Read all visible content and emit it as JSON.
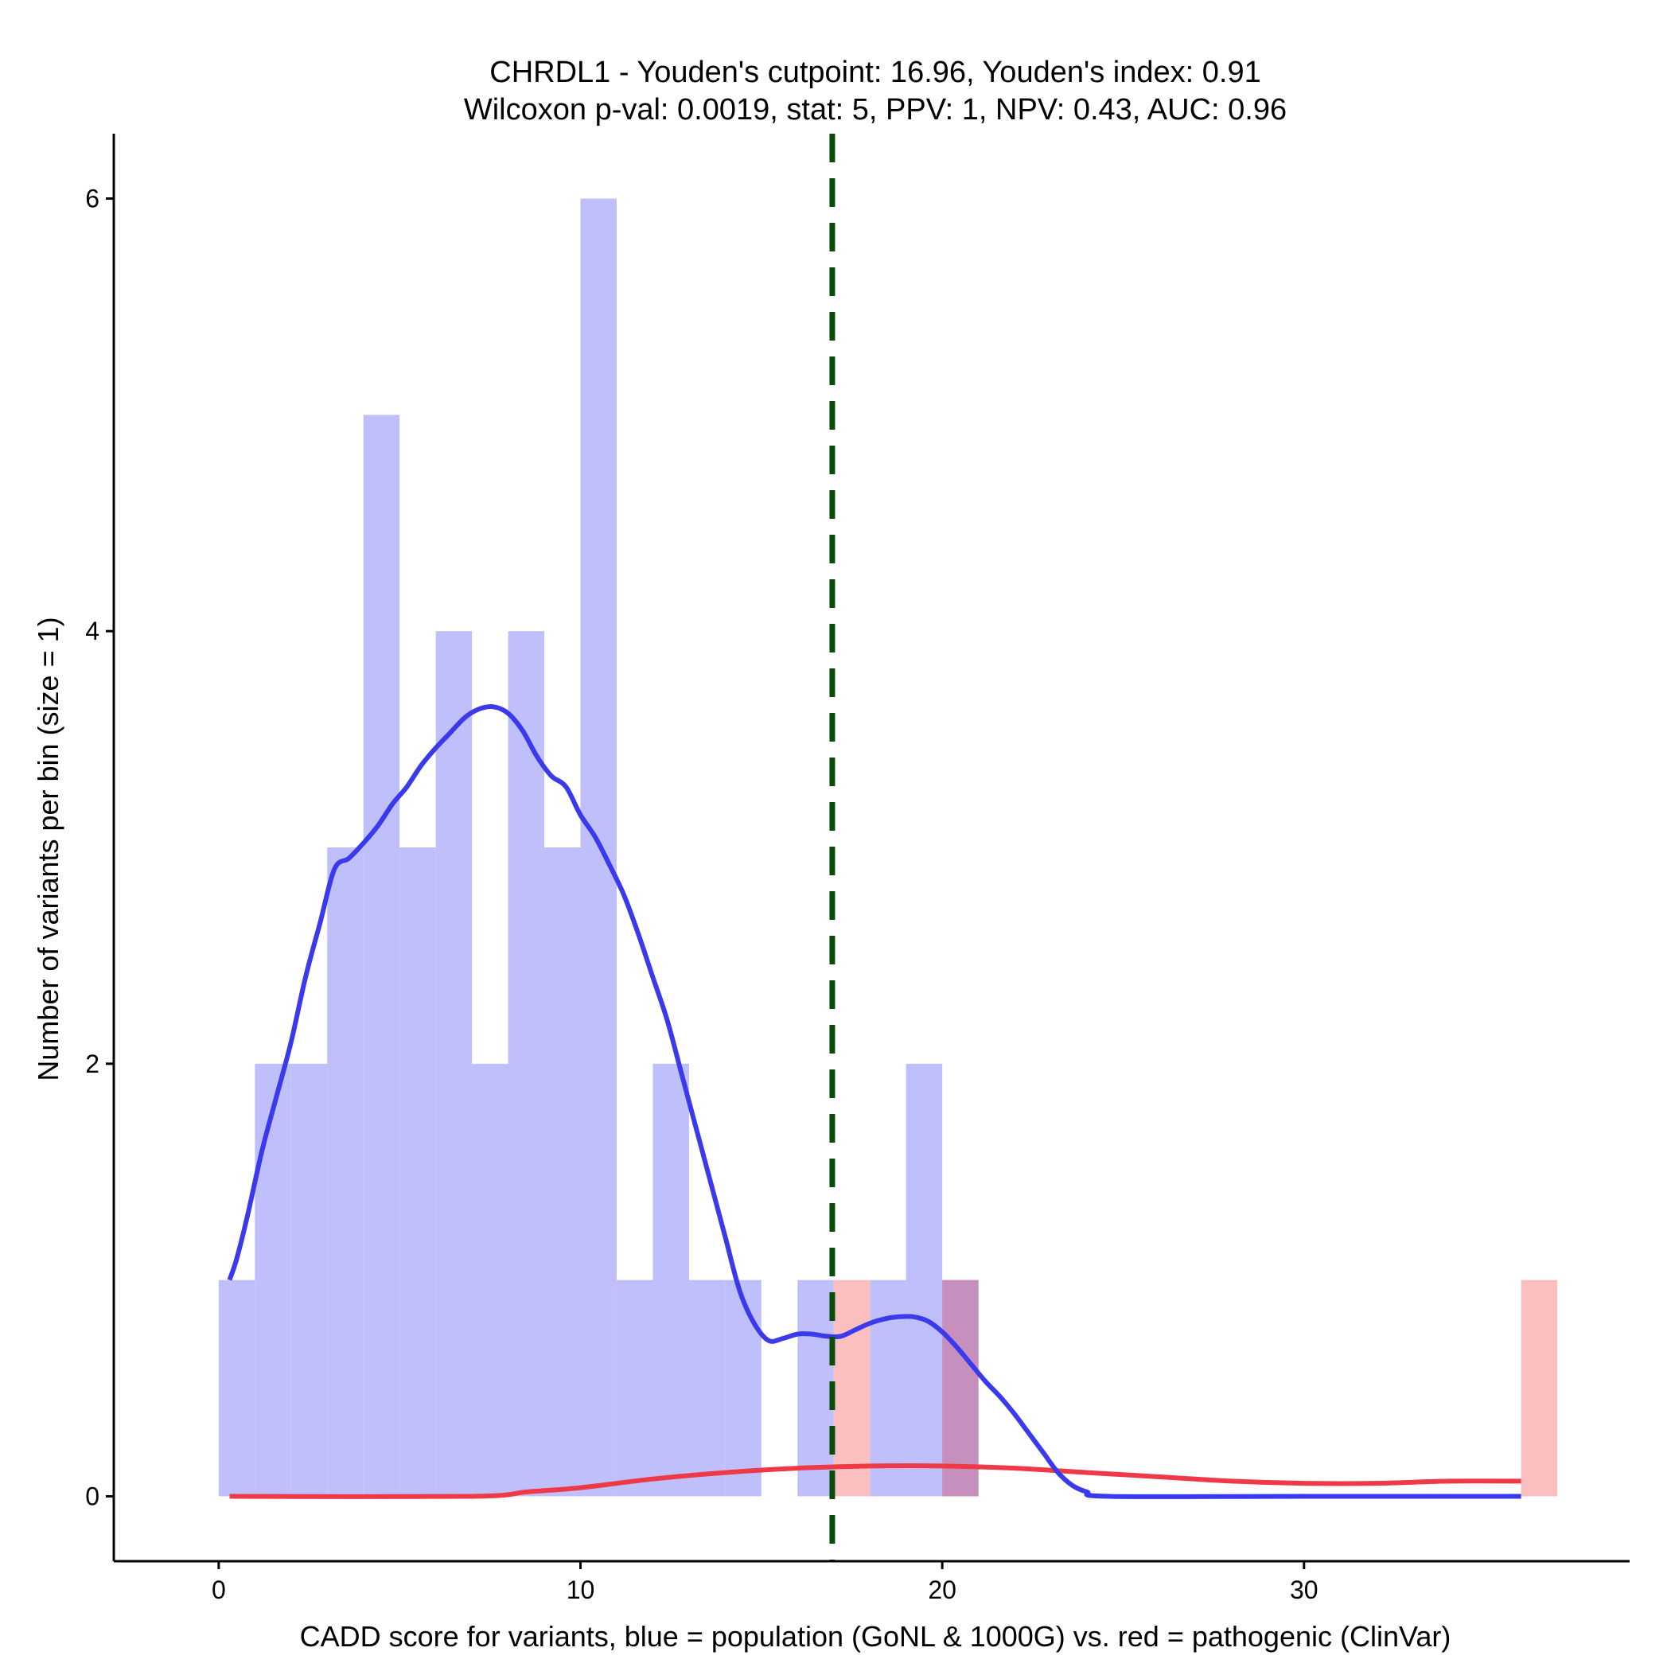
{
  "chart_data": {
    "type": "bar",
    "title": "CHRDL1 - Youden's cutpoint: 16.96, Youden's index: 0.91",
    "subtitle": "Wilcoxon p-val: 0.0019, stat: 5, PPV: 1, NPV: 0.43, AUC: 0.96",
    "xlabel": "CADD score for variants, blue = population (GoNL & 1000G) vs. red = pathogenic (ClinVar)",
    "ylabel": "Number of variants per bin (size = 1)",
    "xlim": [
      -2.9,
      39
    ],
    "ylim": [
      -0.3,
      6.3
    ],
    "x_ticks": [
      0,
      10,
      20,
      30
    ],
    "y_ticks": [
      0,
      2,
      4,
      6
    ],
    "grid": false,
    "bin_width": 1,
    "cutpoint": 16.96,
    "colors": {
      "population_fill": "#bfbffb",
      "pathogenic_fill": "#fcbfbf",
      "overlap_fill": "#c78fbd",
      "population_density": "#3a3aec",
      "pathogenic_density": "#ee3a46",
      "cutpoint_line": "#0a4d0a"
    },
    "series": [
      {
        "role": "population",
        "bins": [
          {
            "x": 0,
            "count": 1
          },
          {
            "x": 1,
            "count": 2
          },
          {
            "x": 2,
            "count": 2
          },
          {
            "x": 3,
            "count": 3
          },
          {
            "x": 4,
            "count": 5
          },
          {
            "x": 5,
            "count": 3
          },
          {
            "x": 6,
            "count": 4
          },
          {
            "x": 7,
            "count": 2
          },
          {
            "x": 8,
            "count": 4
          },
          {
            "x": 9,
            "count": 3
          },
          {
            "x": 10,
            "count": 6
          },
          {
            "x": 11,
            "count": 1
          },
          {
            "x": 12,
            "count": 2
          },
          {
            "x": 13,
            "count": 1
          },
          {
            "x": 14,
            "count": 1
          },
          {
            "x": 16,
            "count": 1
          },
          {
            "x": 18,
            "count": 1
          },
          {
            "x": 19,
            "count": 2
          },
          {
            "x": 20,
            "count": 1
          }
        ]
      },
      {
        "role": "pathogenic",
        "bins": [
          {
            "x": 17,
            "count": 1
          },
          {
            "x": 20,
            "count": 1
          },
          {
            "x": 36,
            "count": 1
          }
        ]
      }
    ],
    "density": [
      {
        "role": "population",
        "points": [
          [
            0.3,
            1.0
          ],
          [
            0.5,
            1.1
          ],
          [
            0.8,
            1.3
          ],
          [
            1.2,
            1.6
          ],
          [
            1.6,
            1.85
          ],
          [
            2.0,
            2.1
          ],
          [
            2.4,
            2.4
          ],
          [
            2.8,
            2.65
          ],
          [
            3.2,
            2.9
          ],
          [
            3.6,
            2.95
          ],
          [
            4.0,
            3.02
          ],
          [
            4.4,
            3.1
          ],
          [
            4.8,
            3.2
          ],
          [
            5.2,
            3.28
          ],
          [
            5.6,
            3.38
          ],
          [
            6.0,
            3.46
          ],
          [
            6.4,
            3.53
          ],
          [
            6.8,
            3.6
          ],
          [
            7.2,
            3.64
          ],
          [
            7.6,
            3.65
          ],
          [
            8.0,
            3.62
          ],
          [
            8.4,
            3.54
          ],
          [
            8.8,
            3.42
          ],
          [
            9.2,
            3.33
          ],
          [
            9.6,
            3.28
          ],
          [
            10.0,
            3.15
          ],
          [
            10.4,
            3.05
          ],
          [
            10.8,
            2.92
          ],
          [
            11.2,
            2.78
          ],
          [
            11.6,
            2.6
          ],
          [
            12.0,
            2.4
          ],
          [
            12.4,
            2.2
          ],
          [
            12.8,
            1.95
          ],
          [
            13.2,
            1.7
          ],
          [
            13.6,
            1.45
          ],
          [
            14.0,
            1.2
          ],
          [
            14.4,
            0.95
          ],
          [
            14.8,
            0.8
          ],
          [
            15.2,
            0.72
          ],
          [
            15.6,
            0.73
          ],
          [
            16.0,
            0.75
          ],
          [
            16.4,
            0.75
          ],
          [
            16.8,
            0.74
          ],
          [
            17.2,
            0.74
          ],
          [
            17.6,
            0.77
          ],
          [
            18.0,
            0.8
          ],
          [
            18.4,
            0.82
          ],
          [
            18.8,
            0.83
          ],
          [
            19.2,
            0.83
          ],
          [
            19.6,
            0.81
          ],
          [
            20.0,
            0.76
          ],
          [
            20.4,
            0.69
          ],
          [
            20.8,
            0.61
          ],
          [
            21.2,
            0.53
          ],
          [
            21.6,
            0.46
          ],
          [
            22.0,
            0.38
          ],
          [
            22.4,
            0.29
          ],
          [
            22.8,
            0.2
          ],
          [
            23.2,
            0.11
          ],
          [
            23.6,
            0.05
          ],
          [
            24.0,
            0.02
          ],
          [
            24.6,
            0.0
          ],
          [
            30.0,
            0.0
          ],
          [
            36.0,
            0.0
          ]
        ]
      },
      {
        "role": "pathogenic",
        "points": [
          [
            0.3,
            0.0
          ],
          [
            7.0,
            0.0
          ],
          [
            8.5,
            0.02
          ],
          [
            10.0,
            0.04
          ],
          [
            12.0,
            0.08
          ],
          [
            14.0,
            0.11
          ],
          [
            16.0,
            0.13
          ],
          [
            18.0,
            0.14
          ],
          [
            20.0,
            0.14
          ],
          [
            22.0,
            0.13
          ],
          [
            24.0,
            0.11
          ],
          [
            26.0,
            0.09
          ],
          [
            28.0,
            0.07
          ],
          [
            30.0,
            0.06
          ],
          [
            32.0,
            0.06
          ],
          [
            34.0,
            0.07
          ],
          [
            36.0,
            0.07
          ]
        ]
      }
    ]
  }
}
